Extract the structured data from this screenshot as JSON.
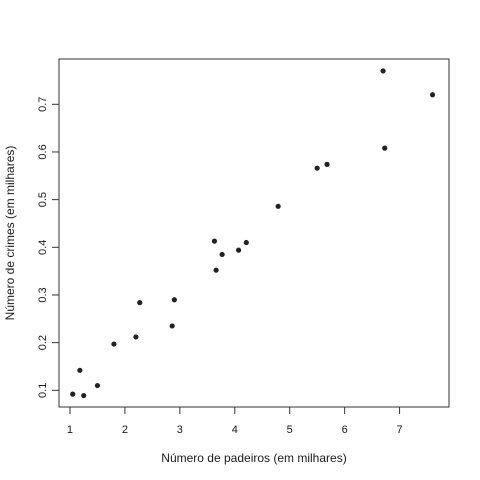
{
  "chart_data": {
    "type": "scatter",
    "title": "",
    "xlabel": "Número de padeiros (em milhares)",
    "ylabel": "Número de crimes (em milhares)",
    "xlim": [
      0.8,
      7.9
    ],
    "ylim": [
      0.065,
      0.795
    ],
    "xticks": [
      1,
      2,
      3,
      4,
      5,
      6,
      7
    ],
    "yticks": [
      0.1,
      0.2,
      0.3,
      0.4,
      0.5,
      0.6,
      0.7
    ],
    "grid": false,
    "legend": "none",
    "point_color": "#222222",
    "points": [
      {
        "x": 1.05,
        "y": 0.092
      },
      {
        "x": 1.18,
        "y": 0.142
      },
      {
        "x": 1.25,
        "y": 0.089
      },
      {
        "x": 1.5,
        "y": 0.11
      },
      {
        "x": 1.8,
        "y": 0.197
      },
      {
        "x": 2.2,
        "y": 0.212
      },
      {
        "x": 2.27,
        "y": 0.284
      },
      {
        "x": 2.86,
        "y": 0.235
      },
      {
        "x": 2.9,
        "y": 0.29
      },
      {
        "x": 3.63,
        "y": 0.413
      },
      {
        "x": 3.66,
        "y": 0.352
      },
      {
        "x": 3.77,
        "y": 0.385
      },
      {
        "x": 4.07,
        "y": 0.394
      },
      {
        "x": 4.21,
        "y": 0.41
      },
      {
        "x": 4.79,
        "y": 0.486
      },
      {
        "x": 5.5,
        "y": 0.566
      },
      {
        "x": 5.68,
        "y": 0.574
      },
      {
        "x": 6.7,
        "y": 0.77
      },
      {
        "x": 6.73,
        "y": 0.608
      },
      {
        "x": 7.6,
        "y": 0.72
      }
    ]
  }
}
